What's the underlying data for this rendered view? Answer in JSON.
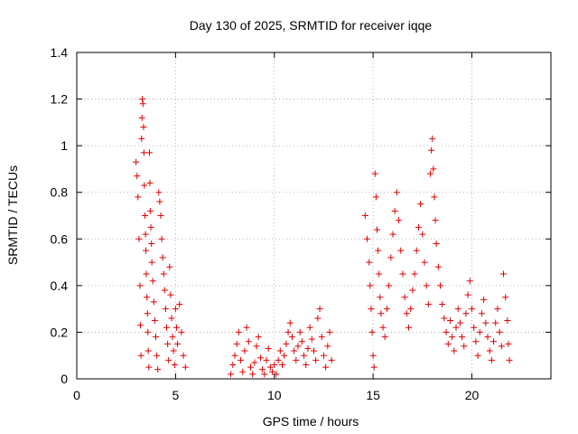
{
  "chart_data": {
    "type": "scatter",
    "title": "Day 130 of 2025, SRMTID for receiver iqqe",
    "xlabel": "GPS time / hours",
    "ylabel": "SRMTID / TECUs",
    "xlim": [
      0,
      24
    ],
    "ylim": [
      0,
      1.4
    ],
    "xticks": [
      0,
      5,
      10,
      15,
      20
    ],
    "xtick_labels": [
      "0",
      "5",
      "10",
      "15",
      "20"
    ],
    "yticks": [
      0,
      0.2,
      0.4,
      0.6,
      0.8,
      1.0,
      1.2,
      1.4
    ],
    "ytick_labels": [
      "0",
      "0.2",
      "0.4",
      "0.6",
      "0.8",
      "1",
      "1.2",
      "1.4"
    ],
    "grid": true,
    "marker": "+",
    "color": "#e00000",
    "series": [
      {
        "name": "SRMTID",
        "points": [
          [
            3.0,
            0.93
          ],
          [
            3.05,
            0.87
          ],
          [
            3.1,
            0.78
          ],
          [
            3.15,
            0.6
          ],
          [
            3.2,
            0.4
          ],
          [
            3.22,
            0.23
          ],
          [
            3.25,
            0.1
          ],
          [
            3.28,
            1.03
          ],
          [
            3.3,
            1.12
          ],
          [
            3.32,
            1.2
          ],
          [
            3.35,
            1.18
          ],
          [
            3.38,
            1.08
          ],
          [
            3.4,
            0.97
          ],
          [
            3.42,
            0.83
          ],
          [
            3.45,
            0.7
          ],
          [
            3.48,
            0.62
          ],
          [
            3.5,
            0.55
          ],
          [
            3.52,
            0.45
          ],
          [
            3.55,
            0.35
          ],
          [
            3.58,
            0.28
          ],
          [
            3.6,
            0.2
          ],
          [
            3.62,
            0.12
          ],
          [
            3.65,
            0.05
          ],
          [
            3.68,
            0.97
          ],
          [
            3.7,
            0.84
          ],
          [
            3.72,
            0.72
          ],
          [
            3.75,
            0.65
          ],
          [
            3.78,
            0.58
          ],
          [
            3.8,
            0.5
          ],
          [
            3.85,
            0.42
          ],
          [
            3.9,
            0.33
          ],
          [
            3.95,
            0.25
          ],
          [
            4.0,
            0.18
          ],
          [
            4.05,
            0.1
          ],
          [
            4.1,
            0.04
          ],
          [
            4.15,
            0.8
          ],
          [
            4.2,
            0.76
          ],
          [
            4.25,
            0.7
          ],
          [
            4.3,
            0.6
          ],
          [
            4.35,
            0.52
          ],
          [
            4.4,
            0.45
          ],
          [
            4.45,
            0.38
          ],
          [
            4.5,
            0.3
          ],
          [
            4.55,
            0.22
          ],
          [
            4.6,
            0.15
          ],
          [
            4.65,
            0.08
          ],
          [
            4.7,
            0.48
          ],
          [
            4.75,
            0.36
          ],
          [
            4.8,
            0.26
          ],
          [
            4.85,
            0.18
          ],
          [
            4.9,
            0.12
          ],
          [
            4.95,
            0.06
          ],
          [
            5.0,
            0.3
          ],
          [
            5.05,
            0.22
          ],
          [
            5.1,
            0.15
          ],
          [
            5.2,
            0.32
          ],
          [
            5.3,
            0.2
          ],
          [
            5.4,
            0.1
          ],
          [
            5.5,
            0.05
          ],
          [
            7.8,
            0.02
          ],
          [
            7.9,
            0.06
          ],
          [
            8.0,
            0.1
          ],
          [
            8.1,
            0.15
          ],
          [
            8.2,
            0.2
          ],
          [
            8.3,
            0.08
          ],
          [
            8.4,
            0.03
          ],
          [
            8.5,
            0.12
          ],
          [
            8.6,
            0.22
          ],
          [
            8.7,
            0.16
          ],
          [
            8.8,
            0.05
          ],
          [
            8.9,
            0.02
          ],
          [
            9.0,
            0.07
          ],
          [
            9.1,
            0.14
          ],
          [
            9.2,
            0.18
          ],
          [
            9.3,
            0.09
          ],
          [
            9.4,
            0.04
          ],
          [
            9.5,
            0.02
          ],
          [
            9.6,
            0.08
          ],
          [
            9.7,
            0.13
          ],
          [
            9.8,
            0.05
          ],
          [
            9.9,
            0.03
          ],
          [
            10.0,
            0.06
          ],
          [
            10.1,
            0.02
          ],
          [
            10.2,
            0.08
          ],
          [
            10.3,
            0.12
          ],
          [
            10.4,
            0.06
          ],
          [
            10.5,
            0.1
          ],
          [
            10.6,
            0.15
          ],
          [
            10.7,
            0.2
          ],
          [
            10.8,
            0.24
          ],
          [
            10.9,
            0.18
          ],
          [
            11.0,
            0.12
          ],
          [
            11.1,
            0.08
          ],
          [
            11.2,
            0.14
          ],
          [
            11.3,
            0.2
          ],
          [
            11.4,
            0.16
          ],
          [
            11.5,
            0.1
          ],
          [
            11.6,
            0.06
          ],
          [
            11.7,
            0.13
          ],
          [
            11.8,
            0.22
          ],
          [
            11.9,
            0.17
          ],
          [
            12.0,
            0.12
          ],
          [
            12.1,
            0.08
          ],
          [
            12.2,
            0.26
          ],
          [
            12.3,
            0.3
          ],
          [
            12.4,
            0.18
          ],
          [
            12.5,
            0.1
          ],
          [
            12.6,
            0.05
          ],
          [
            12.7,
            0.14
          ],
          [
            12.8,
            0.2
          ],
          [
            12.9,
            0.08
          ],
          [
            14.6,
            0.7
          ],
          [
            14.7,
            0.6
          ],
          [
            14.8,
            0.5
          ],
          [
            14.85,
            0.4
          ],
          [
            14.9,
            0.3
          ],
          [
            14.95,
            0.2
          ],
          [
            15.0,
            0.1
          ],
          [
            15.05,
            0.05
          ],
          [
            15.1,
            0.88
          ],
          [
            15.15,
            0.78
          ],
          [
            15.2,
            0.64
          ],
          [
            15.25,
            0.55
          ],
          [
            15.3,
            0.45
          ],
          [
            15.35,
            0.35
          ],
          [
            15.4,
            0.28
          ],
          [
            15.5,
            0.22
          ],
          [
            15.6,
            0.18
          ],
          [
            15.7,
            0.3
          ],
          [
            15.8,
            0.4
          ],
          [
            15.9,
            0.52
          ],
          [
            16.0,
            0.62
          ],
          [
            16.1,
            0.72
          ],
          [
            16.2,
            0.8
          ],
          [
            16.3,
            0.68
          ],
          [
            16.4,
            0.55
          ],
          [
            16.5,
            0.45
          ],
          [
            16.6,
            0.35
          ],
          [
            16.7,
            0.28
          ],
          [
            16.8,
            0.22
          ],
          [
            16.9,
            0.3
          ],
          [
            17.0,
            0.38
          ],
          [
            17.1,
            0.45
          ],
          [
            17.2,
            0.55
          ],
          [
            17.3,
            0.65
          ],
          [
            17.4,
            0.75
          ],
          [
            17.5,
            0.62
          ],
          [
            17.6,
            0.5
          ],
          [
            17.7,
            0.4
          ],
          [
            17.8,
            0.32
          ],
          [
            17.9,
            0.88
          ],
          [
            17.95,
            0.98
          ],
          [
            18.0,
            1.03
          ],
          [
            18.05,
            0.9
          ],
          [
            18.1,
            0.78
          ],
          [
            18.15,
            0.68
          ],
          [
            18.2,
            0.58
          ],
          [
            18.3,
            0.48
          ],
          [
            18.4,
            0.4
          ],
          [
            18.5,
            0.32
          ],
          [
            18.6,
            0.26
          ],
          [
            18.7,
            0.2
          ],
          [
            18.8,
            0.15
          ],
          [
            18.9,
            0.25
          ],
          [
            19.0,
            0.18
          ],
          [
            19.1,
            0.12
          ],
          [
            19.2,
            0.22
          ],
          [
            19.3,
            0.3
          ],
          [
            19.4,
            0.24
          ],
          [
            19.5,
            0.18
          ],
          [
            19.6,
            0.14
          ],
          [
            19.7,
            0.28
          ],
          [
            19.8,
            0.36
          ],
          [
            19.9,
            0.42
          ],
          [
            20.0,
            0.3
          ],
          [
            20.1,
            0.22
          ],
          [
            20.2,
            0.16
          ],
          [
            20.3,
            0.1
          ],
          [
            20.4,
            0.2
          ],
          [
            20.5,
            0.28
          ],
          [
            20.6,
            0.34
          ],
          [
            20.7,
            0.24
          ],
          [
            20.8,
            0.18
          ],
          [
            20.9,
            0.12
          ],
          [
            21.0,
            0.08
          ],
          [
            21.1,
            0.16
          ],
          [
            21.2,
            0.24
          ],
          [
            21.3,
            0.3
          ],
          [
            21.4,
            0.2
          ],
          [
            21.5,
            0.14
          ],
          [
            21.6,
            0.45
          ],
          [
            21.7,
            0.35
          ],
          [
            21.8,
            0.25
          ],
          [
            21.85,
            0.15
          ],
          [
            21.9,
            0.08
          ]
        ]
      }
    ]
  }
}
